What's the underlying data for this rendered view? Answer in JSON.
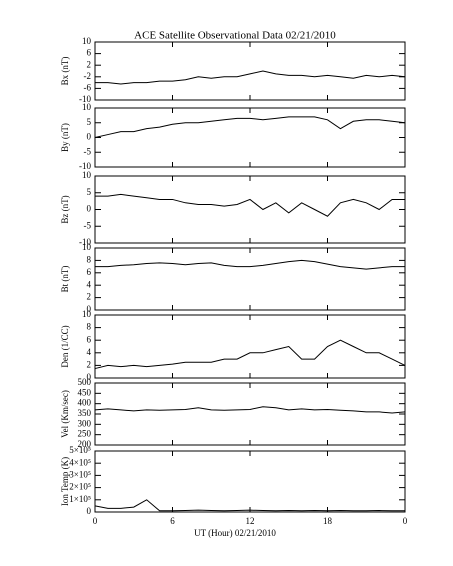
{
  "title": "ACE Satellite Observational Data   02/21/2010",
  "xlabel": "UT (Hour)   02/21/2010",
  "chart_data": [
    {
      "type": "line",
      "ylabel": "Bx (nT)",
      "x": [
        0,
        1,
        2,
        3,
        4,
        5,
        6,
        7,
        8,
        9,
        10,
        11,
        12,
        13,
        14,
        15,
        16,
        17,
        18,
        19,
        20,
        21,
        22,
        23,
        24
      ],
      "xlim": [
        0,
        24
      ],
      "xticks": [
        0,
        6,
        12,
        18,
        {
          "value": 24,
          "label": "0"
        }
      ],
      "ylim": [
        -10,
        10
      ],
      "yticks": [
        10,
        6,
        2,
        -2,
        -6,
        -10
      ],
      "series": [
        {
          "color": "#000000",
          "values": [
            -4,
            -4,
            -4.5,
            -4,
            -4,
            -3.5,
            -3.5,
            -3,
            -2,
            -2.5,
            -2,
            -2,
            -1,
            0,
            -1,
            -1.5,
            -1.5,
            -2,
            -1.5,
            -2,
            -2.5,
            -1.5,
            -2,
            -1.5,
            -2
          ]
        }
      ]
    },
    {
      "type": "line",
      "ylabel": "By (nT)",
      "x": [
        0,
        1,
        2,
        3,
        4,
        5,
        6,
        7,
        8,
        9,
        10,
        11,
        12,
        13,
        14,
        15,
        16,
        17,
        18,
        19,
        20,
        21,
        22,
        23,
        24
      ],
      "xlim": [
        0,
        24
      ],
      "xticks": [
        0,
        6,
        12,
        18,
        {
          "value": 24,
          "label": "0"
        }
      ],
      "ylim": [
        -10,
        10
      ],
      "yticks": [
        10,
        5,
        0,
        -5,
        -10
      ],
      "series": [
        {
          "color": "#000000",
          "values": [
            0,
            1,
            2,
            2,
            3,
            3.5,
            4.5,
            5,
            5,
            5.5,
            6,
            6.5,
            6.5,
            6,
            6.5,
            7,
            7,
            7,
            6,
            3,
            5.5,
            6,
            6,
            5.5,
            5
          ]
        }
      ]
    },
    {
      "type": "line",
      "ylabel": "Bz (nT)",
      "x": [
        0,
        1,
        2,
        3,
        4,
        5,
        6,
        7,
        8,
        9,
        10,
        11,
        12,
        13,
        14,
        15,
        16,
        17,
        18,
        19,
        20,
        21,
        22,
        23,
        24
      ],
      "xlim": [
        0,
        24
      ],
      "xticks": [
        0,
        6,
        12,
        18,
        {
          "value": 24,
          "label": "0"
        }
      ],
      "ylim": [
        -10,
        10
      ],
      "yticks": [
        10,
        5,
        0,
        -5,
        -10
      ],
      "series": [
        {
          "color": "#000000",
          "values": [
            4,
            4,
            4.5,
            4,
            3.5,
            3,
            3,
            2,
            1.5,
            1.5,
            1,
            1.5,
            3,
            0,
            2,
            -1,
            2,
            0,
            -2,
            2,
            3,
            2,
            0,
            3,
            3
          ]
        }
      ]
    },
    {
      "type": "line",
      "ylabel": "Bt (nT)",
      "x": [
        0,
        1,
        2,
        3,
        4,
        5,
        6,
        7,
        8,
        9,
        10,
        11,
        12,
        13,
        14,
        15,
        16,
        17,
        18,
        19,
        20,
        21,
        22,
        23,
        24
      ],
      "xlim": [
        0,
        24
      ],
      "xticks": [
        0,
        6,
        12,
        18,
        {
          "value": 24,
          "label": "0"
        }
      ],
      "ylim": [
        0,
        10
      ],
      "yticks": [
        10,
        8,
        6,
        4,
        2,
        0
      ],
      "series": [
        {
          "color": "#000000",
          "values": [
            7,
            7,
            7.2,
            7.3,
            7.5,
            7.6,
            7.5,
            7.3,
            7.5,
            7.6,
            7.2,
            7,
            7,
            7.2,
            7.5,
            7.8,
            8,
            7.8,
            7.4,
            7,
            6.8,
            6.6,
            6.8,
            7,
            7
          ]
        }
      ]
    },
    {
      "type": "line",
      "ylabel": "Den (1/CC)",
      "x": [
        0,
        1,
        2,
        3,
        4,
        5,
        6,
        7,
        8,
        9,
        10,
        11,
        12,
        13,
        14,
        15,
        16,
        17,
        18,
        19,
        20,
        21,
        22,
        23,
        24
      ],
      "xlim": [
        0,
        24
      ],
      "xticks": [
        0,
        6,
        12,
        18,
        {
          "value": 24,
          "label": "0"
        }
      ],
      "ylim": [
        0,
        10
      ],
      "yticks": [
        10,
        8,
        6,
        4,
        2,
        0
      ],
      "series": [
        {
          "color": "#000000",
          "values": [
            1.5,
            2,
            1.8,
            2,
            1.8,
            2,
            2.2,
            2.5,
            2.5,
            2.5,
            3,
            3,
            4,
            4,
            4.5,
            5,
            3,
            3,
            5,
            6,
            5,
            4,
            4,
            3,
            2
          ]
        }
      ]
    },
    {
      "type": "line",
      "ylabel": "Vel (Km/sec)",
      "x": [
        0,
        1,
        2,
        3,
        4,
        5,
        6,
        7,
        8,
        9,
        10,
        11,
        12,
        13,
        14,
        15,
        16,
        17,
        18,
        19,
        20,
        21,
        22,
        23,
        24
      ],
      "xlim": [
        0,
        24
      ],
      "xticks": [
        0,
        6,
        12,
        18,
        {
          "value": 24,
          "label": "0"
        }
      ],
      "ylim": [
        200,
        500
      ],
      "yticks": [
        500,
        450,
        400,
        350,
        300,
        250,
        200
      ],
      "series": [
        {
          "color": "#000000",
          "values": [
            370,
            375,
            370,
            365,
            370,
            368,
            370,
            372,
            380,
            370,
            368,
            370,
            372,
            385,
            380,
            370,
            375,
            370,
            372,
            368,
            365,
            360,
            360,
            355,
            360
          ]
        }
      ]
    },
    {
      "type": "line",
      "ylabel": "Ion Temp (K)",
      "x": [
        0,
        1,
        2,
        3,
        4,
        5,
        6,
        7,
        8,
        9,
        10,
        11,
        12,
        13,
        14,
        15,
        16,
        17,
        18,
        19,
        20,
        21,
        22,
        23,
        24
      ],
      "xlim": [
        0,
        24
      ],
      "xticks": [
        0,
        6,
        12,
        18,
        {
          "value": 24,
          "label": "0"
        }
      ],
      "ylim": [
        0,
        500000
      ],
      "yticks": [
        {
          "value": 500000,
          "label": "5×10⁵"
        },
        {
          "value": 400000,
          "label": "4×10⁵"
        },
        {
          "value": 300000,
          "label": "3×10⁵"
        },
        {
          "value": 200000,
          "label": "2×10⁵"
        },
        {
          "value": 100000,
          "label": "1×10⁵"
        },
        0
      ],
      "series": [
        {
          "color": "#000000",
          "values": [
            50000,
            30000,
            30000,
            40000,
            100000,
            10000,
            10000,
            12000,
            15000,
            12000,
            10000,
            12000,
            15000,
            12000,
            10000,
            12000,
            10000,
            12000,
            10000,
            12000,
            10000,
            10000,
            12000,
            10000,
            10000
          ]
        }
      ]
    }
  ]
}
